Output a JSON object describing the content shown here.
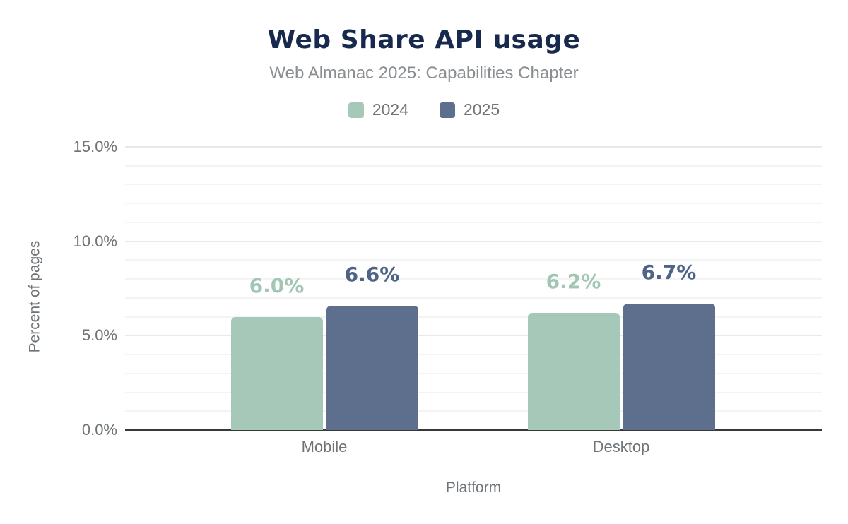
{
  "title": "Web Share API usage",
  "subtitle": "Web Almanac 2025: Capabilities Chapter",
  "legend": {
    "items": [
      {
        "label": "2024",
        "color": "#a5c8b8"
      },
      {
        "label": "2025",
        "color": "#5e6f8d"
      }
    ]
  },
  "axes": {
    "y_title": "Percent of pages",
    "x_title": "Platform",
    "y_ticks": [
      "0.0%",
      "5.0%",
      "10.0%",
      "15.0%"
    ],
    "x_ticks": [
      "Mobile",
      "Desktop"
    ]
  },
  "chart_data": {
    "type": "bar",
    "title": "Web Share API usage",
    "subtitle": "Web Almanac 2025: Capabilities Chapter",
    "categories": [
      "Mobile",
      "Desktop"
    ],
    "series": [
      {
        "name": "2024",
        "color": "#a5c8b8",
        "label_color": "#a2c6b4",
        "values": [
          6.0,
          6.2
        ],
        "data_labels": [
          "6.0%",
          "6.2%"
        ]
      },
      {
        "name": "2025",
        "color": "#5e6f8d",
        "label_color": "#4e6385",
        "values": [
          6.6,
          6.7
        ],
        "data_labels": [
          "6.6%",
          "6.7%"
        ]
      }
    ],
    "xlabel": "Platform",
    "ylabel": "Percent of pages",
    "ylim": [
      0,
      15
    ],
    "ytick_values": [
      0,
      5,
      10,
      15
    ],
    "ytick_labels": [
      "0.0%",
      "5.0%",
      "10.0%",
      "15.0%"
    ],
    "grid": {
      "minor_step": 1,
      "major_step": 5,
      "visible": true
    },
    "legend_position": "top"
  },
  "colors": {
    "title": "#17294d",
    "subtitle": "#8a8e91",
    "axis_text": "#6e7377",
    "axis_line": "#37383a",
    "grid_minor": "#f4f4f4",
    "grid_major": "#e9e9e9",
    "background": "#ffffff"
  }
}
